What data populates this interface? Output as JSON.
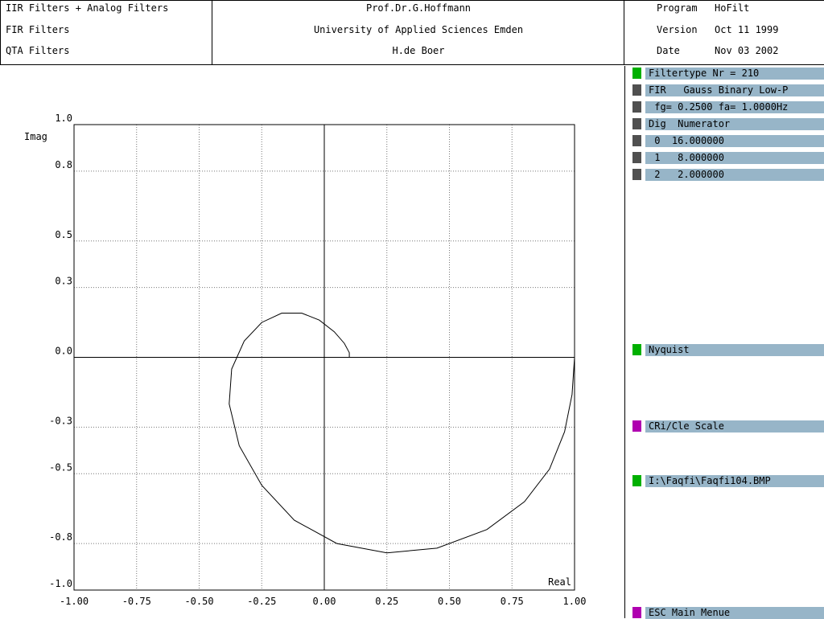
{
  "header": {
    "left": [
      "IIR Filters + Analog Filters",
      "FIR Filters",
      "QTA Filters"
    ],
    "center": [
      "Prof.Dr.G.Hoffmann",
      "University of Applied Sciences Emden",
      "H.de Boer"
    ],
    "right": [
      {
        "label": "Program",
        "value": "HoFilt"
      },
      {
        "label": "Version",
        "value": "Oct 11 1999"
      },
      {
        "label": "Date",
        "value": "Nov 03 2002"
      }
    ]
  },
  "panel": {
    "items": [
      {
        "text": "Filtertype Nr = 210",
        "color": "#00b000"
      },
      {
        "text": "FIR   Gauss Binary Low-P",
        "color": "#505050"
      },
      {
        "text": " fg= 0.2500 fa= 1.0000Hz",
        "color": "#505050"
      },
      {
        "text": "Dig  Numerator",
        "color": "#505050"
      },
      {
        "text": " 0  16.000000",
        "color": "#505050"
      },
      {
        "text": " 1   8.000000",
        "color": "#505050"
      },
      {
        "text": " 2   2.000000",
        "color": "#505050"
      }
    ],
    "buttons": [
      {
        "text": "Nyquist",
        "color": "#00b000"
      },
      {
        "text": "CRi/Cle Scale",
        "color": "#b000b0"
      },
      {
        "text": "I:\\Faqfi\\Faqfi104.BMP",
        "color": "#00b000"
      },
      {
        "text": "ESC Main Menue",
        "color": "#b000b0"
      }
    ]
  },
  "chart_data": {
    "type": "line",
    "title": "",
    "xlabel": "Real",
    "ylabel": "Imag",
    "xlim": [
      -1.0,
      1.0
    ],
    "ylim": [
      -1.0,
      1.0
    ],
    "xticks": [
      -1.0,
      -0.75,
      -0.5,
      -0.25,
      0.0,
      0.25,
      0.5,
      0.75,
      1.0
    ],
    "xtick_labels": [
      "-1.00",
      "-0.75",
      "-0.50",
      "-0.25",
      "0.00",
      "0.25",
      "0.50",
      "0.75",
      "1.00"
    ],
    "yticks": [
      1.0,
      0.8,
      0.5,
      0.3,
      0.0,
      -0.3,
      -0.5,
      -0.8,
      -1.0
    ],
    "ytick_labels": [
      "1.0",
      "0.8",
      "0.5",
      "0.3",
      "0.0",
      "-0.3",
      "-0.5",
      "-0.8",
      "-1.0"
    ],
    "grid": true,
    "series": [
      {
        "x": [
          1.0,
          0.99,
          0.96,
          0.9,
          0.8,
          0.65,
          0.45,
          0.25,
          0.05,
          -0.12,
          -0.25,
          -0.34,
          -0.38,
          -0.37,
          -0.32,
          -0.25,
          -0.17,
          -0.09,
          -0.02,
          0.04,
          0.08,
          0.1,
          0.1
        ],
        "y": [
          0.0,
          -0.16,
          -0.32,
          -0.48,
          -0.62,
          -0.74,
          -0.82,
          -0.84,
          -0.8,
          -0.7,
          -0.55,
          -0.38,
          -0.2,
          -0.05,
          0.07,
          0.15,
          0.19,
          0.19,
          0.16,
          0.11,
          0.06,
          0.02,
          0.0
        ]
      }
    ]
  }
}
